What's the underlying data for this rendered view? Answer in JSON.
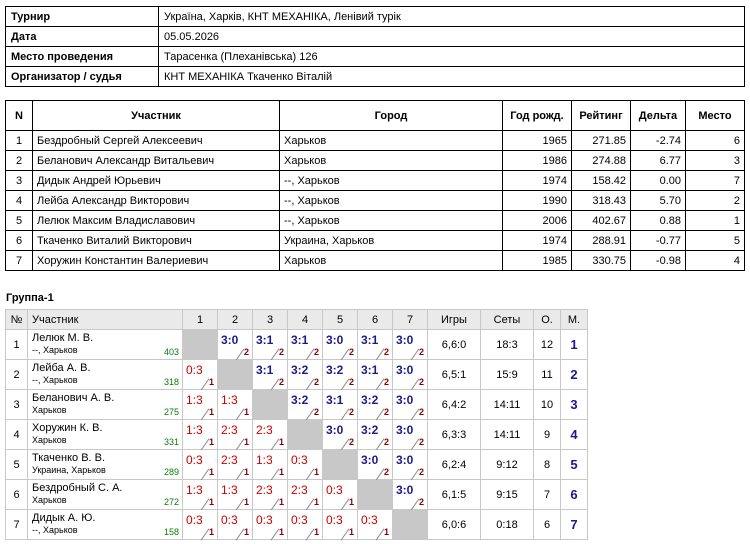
{
  "info": [
    {
      "label": "Турнир",
      "value": "Україна, Харків, КНТ МЕХАНІКА, Ленівий турік"
    },
    {
      "label": "Дата",
      "value": "05.05.2026"
    },
    {
      "label": "Место проведения",
      "value": "Тарасенка (Плеханівська) 126"
    },
    {
      "label": "Организатор / судья",
      "value": "КНТ МЕХАНІКА Ткаченко Віталій"
    }
  ],
  "participants": {
    "headers": [
      "N",
      "Участник",
      "Город",
      "Год рожд.",
      "Рейтинг",
      "Дельта",
      "Место"
    ],
    "rows": [
      [
        "1",
        "Бездробный Сергей Алексеевич",
        "Харьков",
        "1965",
        "271.85",
        "-2.74",
        "6"
      ],
      [
        "2",
        "Беланович Александр Витальевич",
        "Харьков",
        "1986",
        "274.88",
        "6.77",
        "3"
      ],
      [
        "3",
        "Дидык Андрей Юрьевич",
        "--, Харьков",
        "1974",
        "158.42",
        "0.00",
        "7"
      ],
      [
        "4",
        "Лейба Александр Викторович",
        "--, Харьков",
        "1990",
        "318.43",
        "5.70",
        "2"
      ],
      [
        "5",
        "Лелюк Максим Владиславович",
        "--, Харьков",
        "2006",
        "402.67",
        "0.88",
        "1"
      ],
      [
        "6",
        "Ткаченко Виталий Викторович",
        "Украина, Харьков",
        "1974",
        "288.91",
        "-0.77",
        "5"
      ],
      [
        "7",
        "Хоружин Константин Валериевич",
        "Харьков",
        "1985",
        "330.75",
        "-0.98",
        "4"
      ]
    ]
  },
  "group": {
    "title": "Группа-1",
    "headers": {
      "num": "№",
      "name": "Участник",
      "cols": [
        "1",
        "2",
        "3",
        "4",
        "5",
        "6",
        "7"
      ],
      "games": "Игры",
      "sets": "Сеты",
      "points": "О.",
      "place": "М."
    },
    "rows": [
      {
        "num": "1",
        "name": "Лелюк М. В.",
        "city": "--, Харьков",
        "rating": "403",
        "results": [
          null,
          {
            "s": "3:0",
            "p": "2",
            "w": true
          },
          {
            "s": "3:1",
            "p": "2",
            "w": true
          },
          {
            "s": "3:1",
            "p": "2",
            "w": true
          },
          {
            "s": "3:0",
            "p": "2",
            "w": true
          },
          {
            "s": "3:1",
            "p": "2",
            "w": true
          },
          {
            "s": "3:0",
            "p": "2",
            "w": true
          }
        ],
        "games": "6,6:0",
        "sets": "18:3",
        "points": "12",
        "place": "1"
      },
      {
        "num": "2",
        "name": "Лейба А. В.",
        "city": "--, Харьков",
        "rating": "318",
        "results": [
          {
            "s": "0:3",
            "p": "1",
            "w": false
          },
          null,
          {
            "s": "3:1",
            "p": "2",
            "w": true
          },
          {
            "s": "3:2",
            "p": "2",
            "w": true
          },
          {
            "s": "3:2",
            "p": "2",
            "w": true
          },
          {
            "s": "3:1",
            "p": "2",
            "w": true
          },
          {
            "s": "3:0",
            "p": "2",
            "w": true
          }
        ],
        "games": "6,5:1",
        "sets": "15:9",
        "points": "11",
        "place": "2"
      },
      {
        "num": "3",
        "name": "Беланович А. В.",
        "city": "Харьков",
        "rating": "275",
        "results": [
          {
            "s": "1:3",
            "p": "1",
            "w": false
          },
          {
            "s": "1:3",
            "p": "1",
            "w": false
          },
          null,
          {
            "s": "3:2",
            "p": "2",
            "w": true
          },
          {
            "s": "3:1",
            "p": "2",
            "w": true
          },
          {
            "s": "3:2",
            "p": "2",
            "w": true
          },
          {
            "s": "3:0",
            "p": "2",
            "w": true
          }
        ],
        "games": "6,4:2",
        "sets": "14:11",
        "points": "10",
        "place": "3"
      },
      {
        "num": "4",
        "name": "Хоружин К. В.",
        "city": "Харьков",
        "rating": "331",
        "results": [
          {
            "s": "1:3",
            "p": "1",
            "w": false
          },
          {
            "s": "2:3",
            "p": "1",
            "w": false
          },
          {
            "s": "2:3",
            "p": "1",
            "w": false
          },
          null,
          {
            "s": "3:0",
            "p": "2",
            "w": true
          },
          {
            "s": "3:2",
            "p": "2",
            "w": true
          },
          {
            "s": "3:0",
            "p": "2",
            "w": true
          }
        ],
        "games": "6,3:3",
        "sets": "14:11",
        "points": "9",
        "place": "4"
      },
      {
        "num": "5",
        "name": "Ткаченко В. В.",
        "city": "Украина, Харьков",
        "rating": "289",
        "results": [
          {
            "s": "0:3",
            "p": "1",
            "w": false
          },
          {
            "s": "2:3",
            "p": "1",
            "w": false
          },
          {
            "s": "1:3",
            "p": "1",
            "w": false
          },
          {
            "s": "0:3",
            "p": "1",
            "w": false
          },
          null,
          {
            "s": "3:0",
            "p": "2",
            "w": true
          },
          {
            "s": "3:0",
            "p": "2",
            "w": true
          }
        ],
        "games": "6,2:4",
        "sets": "9:12",
        "points": "8",
        "place": "5"
      },
      {
        "num": "6",
        "name": "Бездробный С. А.",
        "city": "Харьков",
        "rating": "272",
        "results": [
          {
            "s": "1:3",
            "p": "1",
            "w": false
          },
          {
            "s": "1:3",
            "p": "1",
            "w": false
          },
          {
            "s": "2:3",
            "p": "1",
            "w": false
          },
          {
            "s": "2:3",
            "p": "1",
            "w": false
          },
          {
            "s": "0:3",
            "p": "1",
            "w": false
          },
          null,
          {
            "s": "3:0",
            "p": "2",
            "w": true
          }
        ],
        "games": "6,1:5",
        "sets": "9:15",
        "points": "7",
        "place": "6"
      },
      {
        "num": "7",
        "name": "Дидык А. Ю.",
        "city": "--, Харьков",
        "rating": "158",
        "results": [
          {
            "s": "0:3",
            "p": "1",
            "w": false
          },
          {
            "s": "0:3",
            "p": "1",
            "w": false
          },
          {
            "s": "0:3",
            "p": "1",
            "w": false
          },
          {
            "s": "0:3",
            "p": "1",
            "w": false
          },
          {
            "s": "0:3",
            "p": "1",
            "w": false
          },
          {
            "s": "0:3",
            "p": "1",
            "w": false
          },
          null
        ],
        "games": "6,0:6",
        "sets": "0:18",
        "points": "6",
        "place": "7"
      }
    ]
  }
}
